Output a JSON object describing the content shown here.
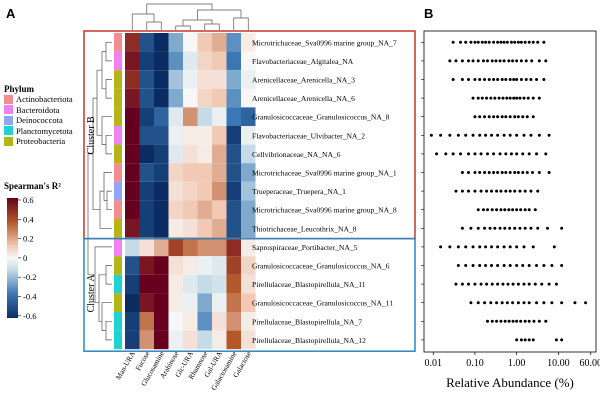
{
  "panel_a_label": "A",
  "panel_b_label": "B",
  "phylum_legend": {
    "title": "Phylum",
    "items": [
      {
        "name": "Actinobacteriota",
        "color": "#f28e8e"
      },
      {
        "name": "Bacteroidota",
        "color": "#ee82ee"
      },
      {
        "name": "Deinococcota",
        "color": "#8fa7f5"
      },
      {
        "name": "Planctomycetota",
        "color": "#1fd3d1"
      },
      {
        "name": "Proteobacteria",
        "color": "#b5b51a"
      }
    ]
  },
  "colorbar": {
    "title": "Spearman's R²",
    "ticks": [
      "0.6",
      "0.4",
      "0.2",
      "0",
      "-0.2",
      "-0.4",
      "-0.6"
    ]
  },
  "clusters": [
    {
      "label": "Cluster B",
      "color": "#c0392b"
    },
    {
      "label": "Cluster A",
      "color": "#2e86c1"
    }
  ],
  "chart_data": [
    {
      "type": "heatmap",
      "title": "",
      "columns": [
        "Man-URA",
        "Fucose",
        "Glucosamine",
        "Arabinose",
        "Glc-URA",
        "Rhamnose",
        "Gal-URA",
        "Galactosamine",
        "Galactose"
      ],
      "rows": [
        {
          "name": "Microtrichaceae_Sva0996 marine group_NA_7",
          "phylum": "Actinobacteriota",
          "cluster": "Cluster B",
          "values": [
            0.5,
            -0.5,
            -0.6,
            -0.3,
            0.0,
            0.2,
            0.25,
            -0.35,
            0.05
          ]
        },
        {
          "name": "Flavobacteriaceae_Algitalea_NA",
          "phylum": "Bacteroidota",
          "cluster": "Cluster B",
          "values": [
            0.55,
            -0.55,
            -0.6,
            -0.35,
            -0.1,
            0.15,
            0.2,
            -0.4,
            0.0
          ]
        },
        {
          "name": "Arenicellaceae_Arenicella_NA_3",
          "phylum": "Proteobacteria",
          "cluster": "Cluster B",
          "values": [
            0.5,
            -0.5,
            -0.6,
            -0.25,
            -0.05,
            0.1,
            0.1,
            -0.3,
            -0.05
          ]
        },
        {
          "name": "Arenicellaceae_Arenicella_NA_6",
          "phylum": "Proteobacteria",
          "cluster": "Cluster B",
          "values": [
            0.55,
            -0.5,
            -0.65,
            -0.3,
            0.0,
            0.15,
            0.2,
            -0.35,
            0.0
          ]
        },
        {
          "name": "Granulosicoccaceae_Granulosicoccus_NA_8",
          "phylum": "Proteobacteria",
          "cluster": "Cluster B",
          "values": [
            0.6,
            -0.55,
            -0.45,
            -0.1,
            0.3,
            -0.2,
            -0.05,
            -0.4,
            -0.45
          ]
        },
        {
          "name": "Flavobacteriaceae_Ulvibacter_NA_2",
          "phylum": "Bacteroidota",
          "cluster": "Cluster B",
          "values": [
            0.65,
            -0.5,
            -0.5,
            -0.05,
            0.05,
            0.05,
            0.2,
            -0.55,
            -0.05
          ]
        },
        {
          "name": "Cellvibrionaceae_NA_NA_6",
          "phylum": "Proteobacteria",
          "cluster": "Cluster B",
          "values": [
            0.65,
            -0.6,
            -0.55,
            -0.1,
            0.1,
            0.05,
            0.25,
            -0.5,
            -0.2
          ]
        },
        {
          "name": "Microtrichaceae_Sva0996 marine group_NA_1",
          "phylum": "Actinobacteriota",
          "cluster": "Cluster B",
          "values": [
            0.6,
            -0.5,
            -0.55,
            0.15,
            0.2,
            0.2,
            0.25,
            -0.5,
            -0.3
          ]
        },
        {
          "name": "Trueperaceae_Truepera_NA_1",
          "phylum": "Deinococcota",
          "cluster": "Cluster B",
          "values": [
            0.6,
            -0.55,
            -0.6,
            0.1,
            0.15,
            0.2,
            0.3,
            -0.55,
            -0.25
          ]
        },
        {
          "name": "Microtrichaceae_Sva0996 marine group_NA_8",
          "phylum": "Actinobacteriota",
          "cluster": "Cluster B",
          "values": [
            0.6,
            -0.55,
            -0.6,
            0.15,
            0.2,
            0.25,
            0.2,
            -0.5,
            -0.3
          ]
        },
        {
          "name": "Thiotrichaceae_Leucothrix_NA_8",
          "phylum": "Proteobacteria",
          "cluster": "Cluster B",
          "values": [
            0.55,
            -0.55,
            -0.6,
            0.05,
            0.1,
            0.2,
            0.25,
            -0.5,
            -0.3
          ]
        },
        {
          "name": "Saprospiraceae_Portibacter_NA_5",
          "phylum": "Bacteroidota",
          "cluster": "Cluster A",
          "values": [
            -0.2,
            0.1,
            0.25,
            0.45,
            0.35,
            0.3,
            0.3,
            0.5,
            0.05
          ]
        },
        {
          "name": "Granulosicoccaceae_Granulosicoccus_NA_6",
          "phylum": "Proteobacteria",
          "cluster": "Cluster A",
          "values": [
            -0.5,
            0.55,
            0.6,
            0.1,
            0.05,
            -0.05,
            -0.1,
            0.45,
            0.15
          ]
        },
        {
          "name": "Pirellulaceae_Blastopirellula_NA_11",
          "phylum": "Planctomycetota",
          "cluster": "Cluster A",
          "values": [
            -0.55,
            0.6,
            0.65,
            0.05,
            -0.1,
            -0.2,
            -0.15,
            0.4,
            0.1
          ]
        },
        {
          "name": "Granulosicoccaceae_Granulosicoccus_NA_11",
          "phylum": "Proteobacteria",
          "cluster": "Cluster A",
          "values": [
            -0.6,
            0.55,
            0.6,
            0.05,
            -0.05,
            -0.3,
            -0.05,
            0.35,
            0.2
          ]
        },
        {
          "name": "Pirellulaceae_Blastopirellula_NA_7",
          "phylum": "Planctomycetota",
          "cluster": "Cluster A",
          "values": [
            -0.55,
            0.35,
            0.6,
            0.0,
            0.05,
            -0.35,
            0.1,
            0.3,
            0.05
          ]
        },
        {
          "name": "Pirellulaceae_Blastopirellula_NA_12",
          "phylum": "Planctomycetota",
          "cluster": "Cluster A",
          "values": [
            -0.55,
            0.3,
            0.6,
            -0.05,
            0.1,
            -0.2,
            0.05,
            0.4,
            0.1
          ]
        }
      ],
      "value_range": [
        -0.6,
        0.6
      ]
    },
    {
      "type": "scatter",
      "title": "",
      "xlabel": "Relative Abundance (%)",
      "ylabel": "",
      "x_scale": "log",
      "xlim": [
        0.006,
        80
      ],
      "x_ticks": [
        0.01,
        0.1,
        1,
        10,
        60
      ],
      "x_tick_labels": [
        "0.01",
        "0.10",
        "1.00",
        "10.00",
        "60.00"
      ],
      "series": [
        {
          "name": "Microtrichaceae_Sva0996 marine group_NA_7",
          "x": [
            0.03,
            0.045,
            0.06,
            0.08,
            0.1,
            0.12,
            0.15,
            0.18,
            0.22,
            0.28,
            0.35,
            0.42,
            0.5,
            0.6,
            0.75,
            0.9,
            1.1,
            1.3,
            1.6,
            2.0,
            2.5,
            3.2,
            4.5
          ]
        },
        {
          "name": "Flavobacteriaceae_Algitalea_NA",
          "x": [
            0.025,
            0.035,
            0.05,
            0.07,
            0.09,
            0.12,
            0.16,
            0.2,
            0.26,
            0.32,
            0.4,
            0.5,
            0.65,
            0.8,
            1.0,
            1.3,
            1.7,
            2.3,
            3.5,
            5.0
          ]
        },
        {
          "name": "Arenicellaceae_Arenicella_NA_3",
          "x": [
            0.03,
            0.05,
            0.07,
            0.1,
            0.13,
            0.17,
            0.22,
            0.28,
            0.35,
            0.45,
            0.55,
            0.7,
            0.85,
            1.0,
            1.3,
            1.7,
            2.2,
            3.0,
            4.5
          ]
        },
        {
          "name": "Arenicellaceae_Arenicella_NA_6",
          "x": [
            0.09,
            0.12,
            0.15,
            0.19,
            0.24,
            0.3,
            0.38,
            0.47,
            0.58,
            0.7,
            0.85,
            1.0,
            1.2,
            1.5,
            1.9,
            2.5,
            3.5
          ]
        },
        {
          "name": "Granulosicoccaceae_Granulosicoccus_NA_8",
          "x": [
            0.1,
            0.13,
            0.17,
            0.22,
            0.28,
            0.35,
            0.45,
            0.55,
            0.7,
            0.9,
            1.1,
            1.4,
            1.8,
            2.5
          ]
        },
        {
          "name": "Flavobacteriaceae_Ulvibacter_NA_2",
          "x": [
            0.009,
            0.015,
            0.025,
            0.04,
            0.06,
            0.09,
            0.13,
            0.18,
            0.25,
            0.35,
            0.5,
            0.7,
            1.0,
            1.5,
            2.2,
            3.5,
            6.0
          ]
        },
        {
          "name": "Cellvibrionaceae_NA_NA_6",
          "x": [
            0.012,
            0.02,
            0.03,
            0.045,
            0.07,
            0.1,
            0.14,
            0.2,
            0.28,
            0.4,
            0.55,
            0.75,
            1.0,
            1.4,
            2.0,
            3.0,
            5.0
          ]
        },
        {
          "name": "Microtrichaceae_Sva0996 marine group_NA_1",
          "x": [
            0.05,
            0.07,
            0.1,
            0.13,
            0.17,
            0.22,
            0.28,
            0.35,
            0.45,
            0.55,
            0.7,
            0.9,
            1.1,
            1.4,
            1.8,
            2.4,
            3.5,
            6.0
          ]
        },
        {
          "name": "Trueperaceae_Truepera_NA_1",
          "x": [
            0.035,
            0.05,
            0.07,
            0.1,
            0.14,
            0.19,
            0.25,
            0.33,
            0.42,
            0.55,
            0.7,
            0.9,
            1.2,
            1.6,
            2.2,
            3.2
          ]
        },
        {
          "name": "Microtrichaceae_Sva0996 marine group_NA_8",
          "x": [
            0.12,
            0.16,
            0.2,
            0.26,
            0.33,
            0.42,
            0.52,
            0.65,
            0.8,
            1.0,
            1.25,
            1.6,
            2.0,
            2.8
          ]
        },
        {
          "name": "Thiotrichaceae_Leucothrix_NA_8",
          "x": [
            0.05,
            0.08,
            0.12,
            0.17,
            0.23,
            0.3,
            0.4,
            0.52,
            0.68,
            0.9,
            1.2,
            1.6,
            2.2,
            3.2,
            5.5,
            12.0
          ]
        },
        {
          "name": "Saprospiraceae_Portibacter_NA_5",
          "x": [
            0.015,
            0.025,
            0.04,
            0.06,
            0.09,
            0.13,
            0.18,
            0.25,
            0.35,
            0.5,
            0.7,
            1.0,
            1.5,
            2.5,
            8.0
          ]
        },
        {
          "name": "Granulosicoccaceae_Granulosicoccus_NA_6",
          "x": [
            0.04,
            0.06,
            0.09,
            0.13,
            0.18,
            0.25,
            0.35,
            0.5,
            0.7,
            1.0,
            1.4,
            2.0,
            3.0,
            4.5,
            7.0,
            12.0
          ]
        },
        {
          "name": "Pirellulaceae_Blastopirellula_NA_11",
          "x": [
            0.035,
            0.05,
            0.07,
            0.1,
            0.14,
            0.19,
            0.26,
            0.35,
            0.47,
            0.62,
            0.82,
            1.1,
            1.5,
            2.0,
            2.8,
            4.0,
            6.0,
            9.0
          ]
        },
        {
          "name": "Granulosicoccaceae_Granulosicoccus_NA_11",
          "x": [
            0.08,
            0.12,
            0.17,
            0.24,
            0.33,
            0.45,
            0.6,
            0.8,
            1.1,
            1.5,
            2.0,
            3.0,
            4.5,
            7.0,
            12.0,
            25.0,
            45.0
          ]
        },
        {
          "name": "Pirellulaceae_Blastopirellula_NA_7",
          "x": [
            0.2,
            0.26,
            0.33,
            0.42,
            0.53,
            0.66,
            0.82,
            1.0,
            1.25,
            1.6,
            2.0,
            2.6,
            3.5,
            5.0
          ]
        },
        {
          "name": "Pirellulaceae_Blastopirellula_NA_12",
          "x": [
            1.0,
            1.3,
            1.6,
            2.0,
            2.5,
            9.0,
            12.0
          ]
        }
      ]
    }
  ]
}
